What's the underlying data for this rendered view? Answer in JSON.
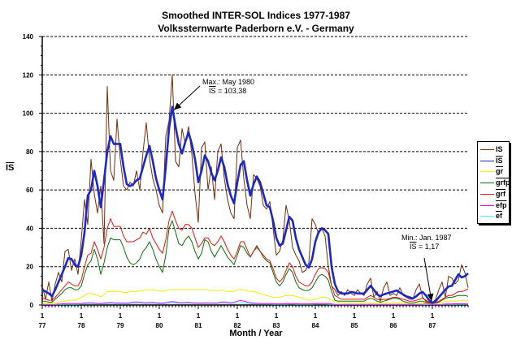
{
  "chart_data": {
    "type": "line",
    "title": "Smoothed INTER-SOL Indices 1977-1987",
    "subtitle": "Volkssternwarte Paderborn e.V. - Germany",
    "xlabel": "Month / Year",
    "ylabel": "IS",
    "ylabel_overlined": true,
    "x_range": [
      "1977-01",
      "1987-12"
    ],
    "x_interval": "month",
    "x_tick_labels": [
      {
        "month": "1",
        "year": "77"
      },
      {
        "month": "1",
        "year": "78"
      },
      {
        "month": "1",
        "year": "79"
      },
      {
        "month": "1",
        "year": "80"
      },
      {
        "month": "1",
        "year": "81"
      },
      {
        "month": "1",
        "year": "82"
      },
      {
        "month": "1",
        "year": "83"
      },
      {
        "month": "1",
        "year": "84"
      },
      {
        "month": "1",
        "year": "85"
      },
      {
        "month": "1",
        "year": "86"
      },
      {
        "month": "1",
        "year": "87"
      }
    ],
    "ylim": [
      0,
      140
    ],
    "y_ticks": [
      "0",
      "20",
      "40",
      "60",
      "80",
      "100",
      "120",
      "140"
    ],
    "grid": "horizontal dashed",
    "legend_position": "right",
    "series": [
      {
        "name": "IS",
        "overlined": false,
        "color": "#7a2a08",
        "values": [
          10,
          3,
          12,
          2,
          11,
          17,
          12,
          28,
          29,
          18,
          24,
          16,
          34,
          55,
          42,
          76,
          58,
          48,
          62,
          32,
          114,
          70,
          65,
          97,
          76,
          62,
          60,
          64,
          62,
          70,
          60,
          80,
          95,
          76,
          66,
          60,
          52,
          48,
          88,
          96,
          120,
          75,
          72,
          92,
          84,
          93,
          79,
          58,
          43,
          82,
          85,
          60,
          72,
          55,
          80,
          84,
          66,
          55,
          48,
          45,
          82,
          86,
          66,
          52,
          45,
          68,
          66,
          62,
          52,
          50,
          54,
          40,
          26,
          28,
          34,
          52,
          44,
          30,
          26,
          23,
          17,
          18,
          22,
          45,
          42,
          37,
          40,
          36,
          20,
          10,
          8,
          5,
          7,
          5,
          8,
          6,
          5,
          8,
          6,
          5,
          11,
          14,
          4,
          7,
          2,
          9,
          12,
          5,
          6,
          5,
          9,
          5,
          4,
          3,
          3,
          8,
          11,
          4,
          2,
          1,
          1,
          3,
          8,
          12,
          4,
          15,
          14,
          11,
          13,
          21,
          17,
          9
        ]
      },
      {
        "name": "IS",
        "overlined": true,
        "color": "#1a28c8",
        "values": [
          8,
          7,
          6,
          4.6,
          8,
          12,
          16,
          20,
          24.5,
          24,
          21,
          20,
          26,
          38,
          57,
          60,
          70,
          62,
          51,
          65,
          80,
          88,
          84,
          84,
          84,
          72,
          63,
          62,
          63,
          65,
          66,
          72,
          78,
          83,
          75,
          66,
          60,
          55,
          72,
          92,
          103.38,
          93,
          84,
          79,
          85,
          90,
          84,
          76,
          64,
          70,
          78,
          75,
          69,
          65,
          70,
          77,
          72,
          63,
          57,
          53,
          64,
          73,
          75,
          65,
          57,
          63,
          67,
          64,
          58,
          52,
          51,
          44,
          35,
          31,
          32,
          39,
          46,
          44,
          35,
          29,
          25,
          21,
          19.5,
          24,
          33,
          38,
          40,
          39,
          37,
          20,
          11,
          7,
          6,
          6,
          6,
          6.8,
          6.5,
          6,
          6,
          6,
          8,
          10,
          8,
          5.5,
          4.7,
          5.5,
          6,
          6.5,
          7,
          7.6,
          6.5,
          5.5,
          4.5,
          4,
          3.4,
          4.5,
          6,
          6.8,
          5,
          2.5,
          1.17,
          2,
          4,
          6,
          8,
          9.7,
          10,
          13,
          16,
          14.4,
          15,
          16.5
        ]
      },
      {
        "name": "gr",
        "overlined": true,
        "color": "#f0f000",
        "values": [
          1,
          1,
          1,
          1,
          1.2,
          1.5,
          2,
          2,
          2.5,
          2.5,
          2.5,
          3,
          4,
          5,
          6,
          6,
          5.5,
          5,
          4.3,
          5.5,
          7,
          7,
          7,
          7,
          7,
          6.5,
          6.5,
          7,
          7,
          7,
          7.5,
          7.5,
          8,
          8,
          8,
          7.5,
          7.5,
          7,
          7.5,
          8,
          8,
          8,
          8,
          8,
          8,
          8,
          8,
          8,
          8,
          8,
          8,
          8,
          7.5,
          7.5,
          7.5,
          8,
          7.5,
          7,
          7,
          7,
          8,
          8,
          8,
          7.5,
          7,
          7,
          6.5,
          6,
          5.5,
          5,
          4.5,
          4,
          4,
          4,
          4.5,
          5,
          5,
          5,
          4.5,
          4,
          3.5,
          3,
          2.5,
          2.5,
          3,
          3.5,
          4,
          4,
          3.5,
          2.5,
          1.7,
          1.5,
          1.2,
          1,
          1,
          1,
          1,
          1,
          1,
          1,
          1,
          1,
          1,
          1,
          1,
          1,
          1,
          1,
          1,
          1,
          1,
          1,
          1,
          1,
          1,
          1,
          1,
          1.2,
          1.2,
          1,
          1,
          1,
          1.2,
          1.5,
          1.8,
          2,
          2,
          2,
          2.2,
          2.4,
          2.5,
          2.2
        ]
      },
      {
        "name": "grfp",
        "overlined": true,
        "color": "#087008",
        "values": [
          2,
          2,
          1.5,
          1.5,
          3,
          4.5,
          6,
          8,
          9,
          9,
          8,
          8,
          10,
          16,
          21,
          23,
          29,
          24,
          16,
          22,
          30,
          35,
          34,
          34,
          34,
          30,
          25,
          22,
          21,
          22,
          24,
          28,
          30,
          33,
          29,
          24,
          20,
          17,
          26,
          40,
          44,
          38,
          32,
          31,
          34,
          36,
          33,
          28,
          24,
          27,
          34,
          33,
          28,
          25,
          28,
          31,
          28,
          25,
          23,
          21,
          26,
          31,
          30,
          27,
          25,
          28,
          31,
          28,
          25,
          23,
          22,
          17,
          12,
          10,
          12,
          16,
          19,
          17,
          12,
          9,
          8,
          7.5,
          7.6,
          9,
          12,
          15,
          16,
          15,
          13,
          7,
          2.5,
          2,
          2,
          2,
          2,
          2,
          2,
          2,
          2,
          2,
          3,
          3.5,
          3,
          2,
          1.5,
          2,
          2.5,
          3,
          3.5,
          3.5,
          3,
          2,
          1.5,
          1,
          1,
          1.5,
          2,
          2,
          1.5,
          1,
          0.8,
          1,
          1.5,
          2.5,
          3.5,
          4,
          4,
          4.5,
          5,
          5,
          5,
          4.5
        ]
      },
      {
        "name": "grf",
        "overlined": true,
        "color": "#f01010",
        "values": [
          3.8,
          3,
          2.5,
          2.5,
          4,
          6,
          8,
          10,
          12,
          11,
          10,
          10,
          13,
          20,
          26,
          27,
          33,
          29,
          24,
          30,
          40,
          45,
          41,
          41,
          41,
          36,
          33,
          33,
          33,
          34,
          35,
          38,
          37,
          40,
          35,
          32,
          29,
          27,
          34,
          44,
          49,
          44,
          40,
          39,
          42,
          42,
          40,
          35,
          30,
          32,
          35,
          35,
          32,
          31,
          33,
          36,
          33,
          29,
          26,
          24,
          28,
          33,
          33,
          29,
          25,
          28,
          30,
          28,
          26,
          24,
          23,
          19,
          14,
          12,
          14,
          18,
          22,
          20,
          15,
          12,
          11,
          10,
          10,
          12,
          16,
          19,
          19.5,
          19,
          17,
          10,
          5,
          4,
          3,
          3,
          3,
          3,
          3,
          3,
          3,
          3,
          4,
          5,
          4,
          3,
          2.5,
          3,
          3,
          3.5,
          4,
          4,
          3.5,
          3,
          2.5,
          2,
          2,
          2.5,
          3,
          3.5,
          2.5,
          1.5,
          1,
          1.2,
          2,
          3,
          4,
          5,
          5,
          6,
          7,
          7,
          7.5,
          8.5
        ]
      },
      {
        "name": "efp",
        "overlined": true,
        "color": "#f000f0",
        "values": [
          0.3,
          0.3,
          0.3,
          0.3,
          0.4,
          0.5,
          0.6,
          0.7,
          0.8,
          0.8,
          0.7,
          0.7,
          0.8,
          1,
          1.2,
          1.2,
          1,
          0.9,
          0.8,
          1,
          1.2,
          1.3,
          1.2,
          1.1,
          1,
          1,
          1,
          1.2,
          1.5,
          1.6,
          1.5,
          1.3,
          1.2,
          1.3,
          1.4,
          1.2,
          1,
          1,
          1.2,
          1.6,
          1.8,
          1.6,
          1.3,
          1.2,
          1.3,
          1.4,
          1.2,
          1.1,
          1,
          1,
          1.1,
          1.1,
          1,
          1,
          1.2,
          1.5,
          1.6,
          1.4,
          1.2,
          1.4,
          2,
          2.4,
          2,
          1.6,
          1.2,
          1,
          0.9,
          0.8,
          0.8,
          0.8,
          0.7,
          0.7,
          0.6,
          0.6,
          0.6,
          0.7,
          0.8,
          0.8,
          0.7,
          0.6,
          0.6,
          0.6,
          0.6,
          0.7,
          0.8,
          0.8,
          0.8,
          0.8,
          0.7,
          0.5,
          0.3,
          0.3,
          0.3,
          0.3,
          0.3,
          0.3,
          0.3,
          0.3,
          0.3,
          0.3,
          0.3,
          0.4,
          0.3,
          0.3,
          0.3,
          0.3,
          0.3,
          0.3,
          0.3,
          0.3,
          0.3,
          0.3,
          0.3,
          0.3,
          0.3,
          0.3,
          0.3,
          0.4,
          0.6,
          0.4,
          0.3,
          0.3,
          0.3,
          0.4,
          0.5,
          0.5,
          0.6,
          0.6,
          0.7,
          0.7,
          0.6,
          0.6
        ]
      },
      {
        "name": "ef",
        "overlined": true,
        "color": "#40f0f0",
        "values": [
          0.2,
          0.2,
          0.2,
          0.2,
          0.2,
          0.3,
          0.3,
          0.4,
          0.4,
          0.4,
          0.4,
          0.4,
          0.5,
          0.6,
          0.6,
          0.6,
          0.6,
          0.5,
          0.5,
          0.6,
          0.7,
          0.7,
          0.7,
          0.6,
          0.6,
          0.6,
          0.6,
          0.7,
          0.8,
          0.8,
          0.8,
          0.7,
          0.7,
          0.8,
          0.8,
          0.7,
          0.6,
          0.6,
          0.8,
          1,
          1.1,
          1,
          0.9,
          0.8,
          0.9,
          0.9,
          0.8,
          0.7,
          0.7,
          0.7,
          0.8,
          0.8,
          0.7,
          0.7,
          0.8,
          0.9,
          0.9,
          0.8,
          0.7,
          0.8,
          1,
          1.1,
          1,
          0.9,
          0.7,
          0.6,
          0.6,
          0.5,
          0.5,
          0.5,
          0.5,
          0.4,
          0.4,
          0.4,
          0.4,
          0.4,
          0.5,
          0.5,
          0.4,
          0.4,
          0.4,
          0.4,
          0.4,
          0.4,
          0.5,
          0.5,
          0.5,
          0.5,
          0.4,
          0.3,
          0.2,
          0.2,
          0.2,
          0.2,
          0.2,
          0.2,
          0.2,
          0.2,
          0.2,
          0.2,
          0.2,
          0.2,
          0.2,
          0.2,
          0.2,
          0.2,
          0.2,
          0.2,
          0.2,
          0.2,
          0.2,
          0.2,
          0.2,
          0.2,
          0.2,
          0.2,
          0.2,
          0.2,
          0.2,
          0.2,
          0.2,
          0.2,
          0.2,
          0.2,
          0.3,
          0.3,
          0.3,
          0.3,
          0.4,
          0.4,
          0.4,
          0.4
        ]
      }
    ],
    "annotations": [
      {
        "label": "Max.:  May 1980",
        "value_symbol": "IS",
        "value_text": " = 103,38",
        "month": "1980-05",
        "value": 103.38
      },
      {
        "label": "Min.:  Jan. 1987",
        "value_symbol": "IS",
        "value_text": " = 1,17",
        "month": "1987-01",
        "value": 1.17
      }
    ]
  }
}
